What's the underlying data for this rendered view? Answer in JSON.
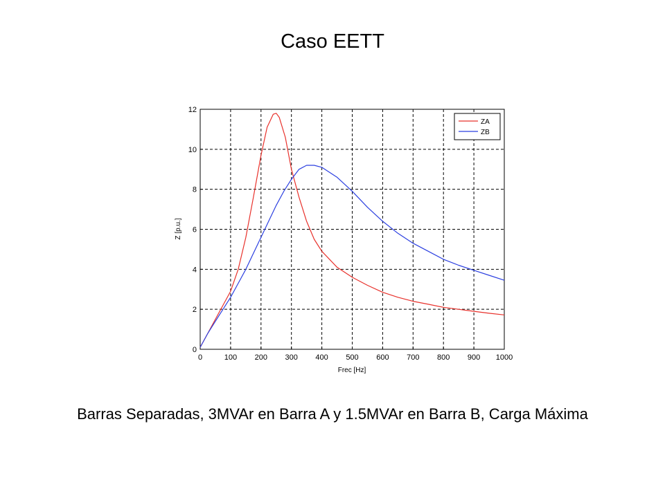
{
  "slide": {
    "title": "Caso EETT",
    "caption": "Barras Separadas, 3MVAr en Barra A y 1.5MVAr en Barra B, Carga Máxima"
  },
  "chart_data": {
    "type": "line",
    "title": "",
    "xlabel": "Frec [Hz]",
    "ylabel": "Z [p.u.]",
    "xlim": [
      0,
      1000
    ],
    "ylim": [
      0,
      12
    ],
    "xticks": [
      0,
      100,
      200,
      300,
      400,
      500,
      600,
      700,
      800,
      900,
      1000
    ],
    "yticks": [
      0,
      2,
      4,
      6,
      8,
      10,
      12
    ],
    "grid": true,
    "legend_position": "top-right",
    "series": [
      {
        "name": "ZA",
        "color": "#e8302a",
        "x": [
          0,
          25,
          50,
          75,
          100,
          125,
          150,
          175,
          200,
          220,
          240,
          250,
          260,
          280,
          300,
          325,
          350,
          375,
          400,
          450,
          500,
          550,
          600,
          650,
          700,
          750,
          800,
          850,
          900,
          950,
          1000
        ],
        "y": [
          0.1,
          0.8,
          1.5,
          2.2,
          2.9,
          4.0,
          5.6,
          7.6,
          9.7,
          11.1,
          11.75,
          11.8,
          11.6,
          10.6,
          9.0,
          7.6,
          6.4,
          5.5,
          4.9,
          4.1,
          3.6,
          3.2,
          2.85,
          2.6,
          2.4,
          2.25,
          2.1,
          2.0,
          1.9,
          1.8,
          1.72
        ]
      },
      {
        "name": "ZB",
        "color": "#2b3fe0",
        "x": [
          0,
          25,
          50,
          75,
          100,
          125,
          150,
          175,
          200,
          225,
          250,
          275,
          300,
          325,
          350,
          375,
          400,
          450,
          500,
          550,
          600,
          650,
          700,
          750,
          800,
          850,
          900,
          950,
          1000
        ],
        "y": [
          0.1,
          0.8,
          1.4,
          2.0,
          2.6,
          3.3,
          4.0,
          4.8,
          5.6,
          6.4,
          7.2,
          7.9,
          8.5,
          9.0,
          9.2,
          9.2,
          9.1,
          8.6,
          7.9,
          7.1,
          6.4,
          5.8,
          5.3,
          4.9,
          4.5,
          4.2,
          3.95,
          3.7,
          3.45
        ]
      }
    ]
  }
}
